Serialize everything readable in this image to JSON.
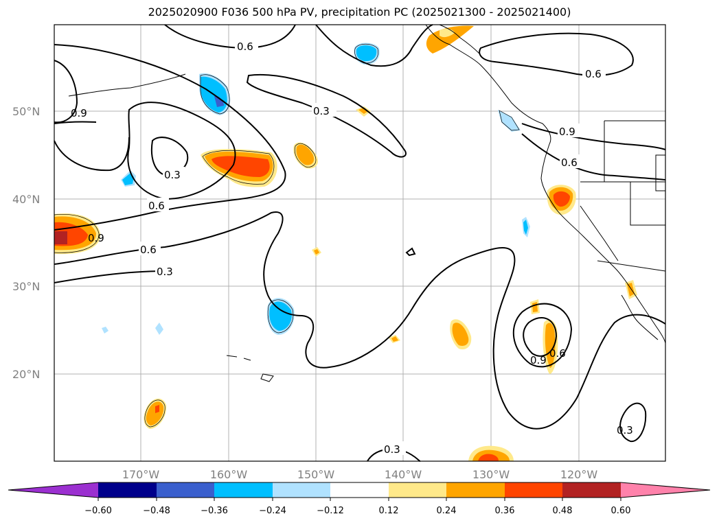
{
  "title": "2025020900 F036 500 hPa PV, precipitation PC (2025021300 - 2025021400)",
  "map": {
    "lat_labels": [
      "50°N",
      "40°N",
      "30°N",
      "20°N"
    ],
    "lon_labels": [
      "170°W",
      "160°W",
      "150°W",
      "140°W",
      "130°W",
      "120°W"
    ],
    "contour_labels": [
      "0.6",
      "0.6",
      "0.9",
      "0.3",
      "0.6",
      "0.6",
      "0.3",
      "0.9",
      "0.9",
      "0.6",
      "0.3",
      "0.9",
      "0.6",
      "0.3",
      "0.3"
    ]
  },
  "colorbar": {
    "ticks": [
      "−0.60",
      "−0.48",
      "−0.36",
      "−0.24",
      "−0.12",
      "0.12",
      "0.24",
      "0.36",
      "0.48",
      "0.60"
    ],
    "colors": [
      "#9b30d0",
      "#00008b",
      "#3a5fcd",
      "#00bfff",
      "#b0e2ff",
      "#ffffff",
      "#ffe98a",
      "#ffa500",
      "#ff4500",
      "#b22222",
      "#ff82ab"
    ]
  }
}
